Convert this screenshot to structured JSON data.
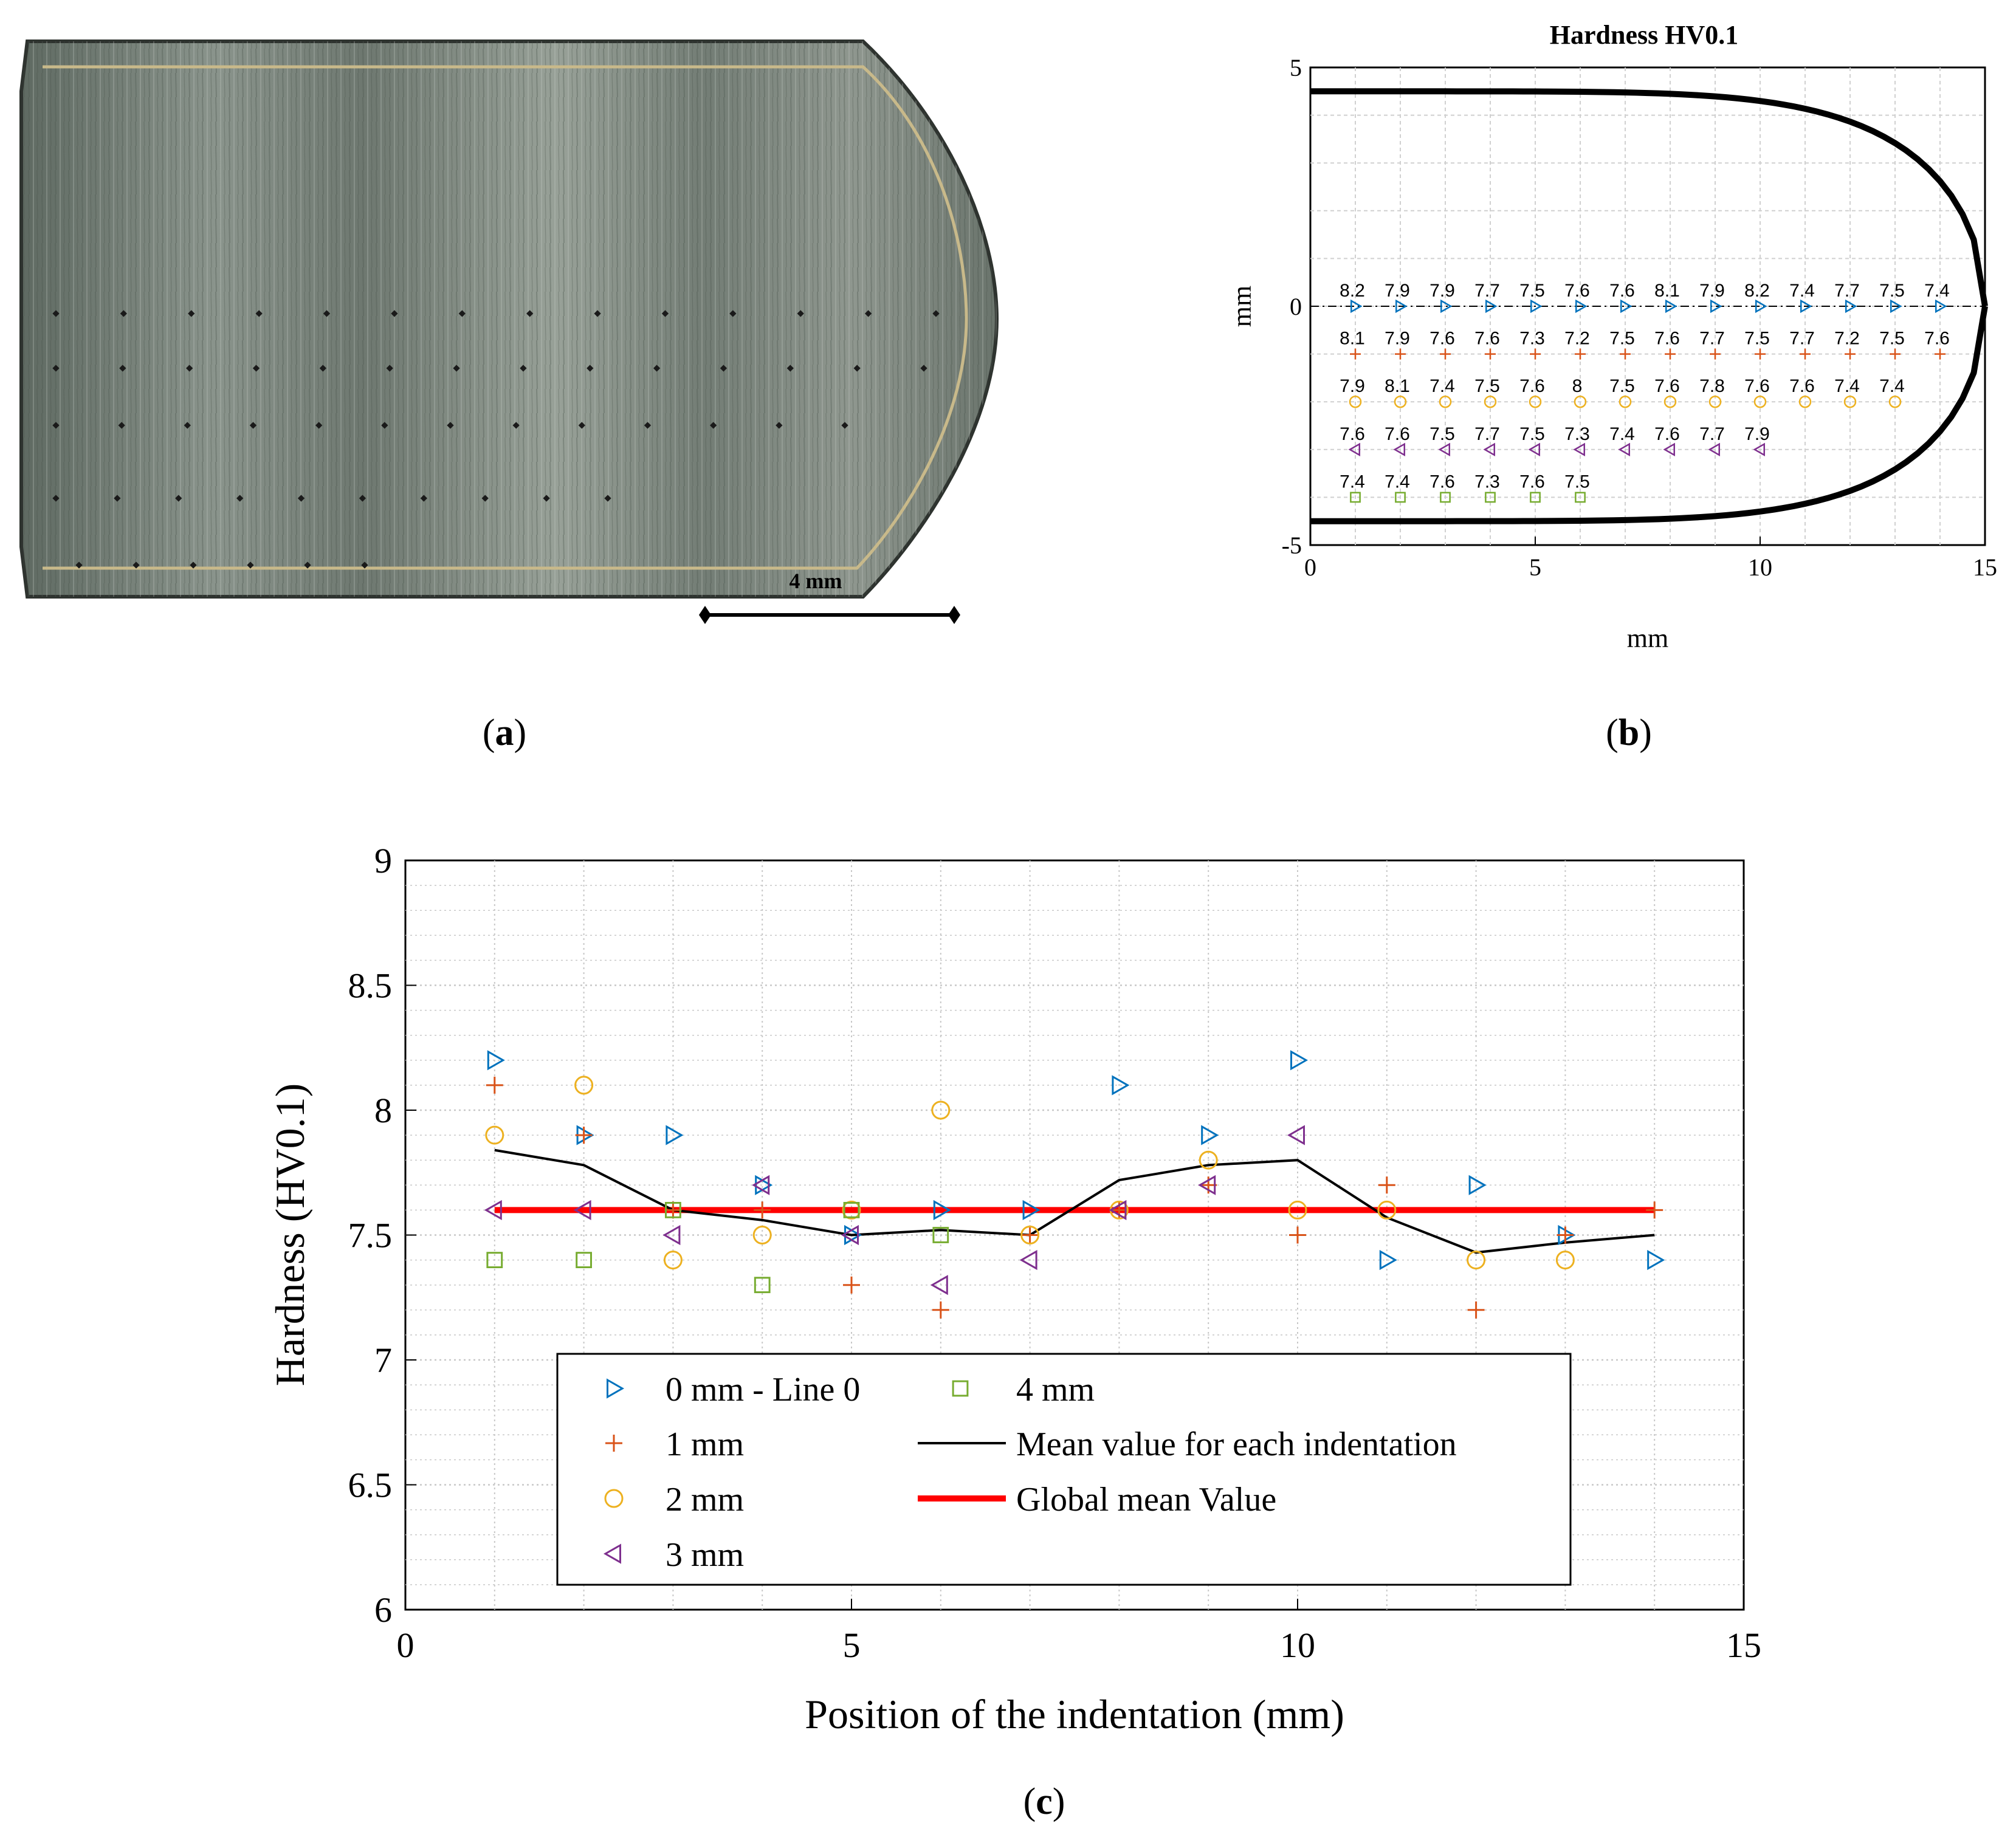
{
  "colors": {
    "line0": "#0072BD",
    "line1": "#D95319",
    "line2": "#EDB120",
    "line3": "#7E2F8E",
    "line4": "#77AC30",
    "mean": "#000000",
    "global_mean": "#FF0000"
  },
  "panel_labels": {
    "a": "a",
    "b": "b",
    "c": "c"
  },
  "panel_a": {
    "scale_bar_label": "4 mm"
  },
  "chart_data": [
    {
      "id": "b",
      "type": "scatter",
      "title": "Hardness HV0.1",
      "xlabel": "mm",
      "ylabel": "mm",
      "xlim": [
        0,
        15
      ],
      "ylim": [
        -5,
        5
      ],
      "xticks": [
        "0",
        "5",
        "10",
        "15"
      ],
      "yticks": [
        "5",
        "0",
        "-5"
      ],
      "grid": true,
      "profile_outline": "specimen tip contour (black, y = ±4.5 with rounded tip at x = 15)",
      "series": [
        {
          "name": "0 mm - Line 0",
          "marker": "triangle-right",
          "y": 0,
          "x": [
            1,
            2,
            3,
            4,
            5,
            6,
            7,
            8,
            9,
            10,
            11,
            12,
            13,
            14
          ],
          "labels": [
            "8.2",
            "7.9",
            "7.9",
            "7.7",
            "7.5",
            "7.6",
            "7.6",
            "8.1",
            "7.9",
            "8.2",
            "7.4",
            "7.7",
            "7.5",
            "7.4"
          ]
        },
        {
          "name": "1 mm",
          "marker": "plus",
          "y": -1,
          "x": [
            1,
            2,
            3,
            4,
            5,
            6,
            7,
            8,
            9,
            10,
            11,
            12,
            13,
            14
          ],
          "labels": [
            "8.1",
            "7.9",
            "7.6",
            "7.6",
            "7.3",
            "7.2",
            "7.5",
            "7.6",
            "7.7",
            "7.5",
            "7.7",
            "7.2",
            "7.5",
            "7.6"
          ]
        },
        {
          "name": "2 mm",
          "marker": "circle",
          "y": -2,
          "x": [
            1,
            2,
            3,
            4,
            5,
            6,
            7,
            8,
            9,
            10,
            11,
            12,
            13
          ],
          "labels": [
            "7.9",
            "8.1",
            "7.4",
            "7.5",
            "7.6",
            "8",
            "7.5",
            "7.6",
            "7.8",
            "7.6",
            "7.6",
            "7.4",
            "7.4"
          ]
        },
        {
          "name": "3 mm",
          "marker": "triangle-left",
          "y": -3,
          "x": [
            1,
            2,
            3,
            4,
            5,
            6,
            7,
            8,
            9,
            10
          ],
          "labels": [
            "7.6",
            "7.6",
            "7.5",
            "7.7",
            "7.5",
            "7.3",
            "7.4",
            "7.6",
            "7.7",
            "7.9"
          ]
        },
        {
          "name": "4 mm",
          "marker": "square",
          "y": -4,
          "x": [
            1,
            2,
            3,
            4,
            5,
            6
          ],
          "labels": [
            "7.4",
            "7.4",
            "7.6",
            "7.3",
            "7.6",
            "7.5"
          ]
        }
      ]
    },
    {
      "id": "c",
      "type": "scatter",
      "title": "",
      "xlabel": "Position of the indentation (mm)",
      "ylabel": "Hardness (HV0.1)",
      "xlim": [
        0,
        15
      ],
      "ylim": [
        6,
        9
      ],
      "xticks": [
        "0",
        "5",
        "10",
        "15"
      ],
      "yticks": [
        "9",
        "8.5",
        "8",
        "7.5",
        "7",
        "6.5",
        "6"
      ],
      "grid": true,
      "legend_location": "bottom-center",
      "series": [
        {
          "name": "0 mm - Line 0",
          "marker": "triangle-right",
          "x": [
            1,
            2,
            3,
            4,
            5,
            6,
            7,
            8,
            9,
            10,
            11,
            12,
            13,
            14
          ],
          "y": [
            8.2,
            7.9,
            7.9,
            7.7,
            7.5,
            7.6,
            7.6,
            8.1,
            7.9,
            8.2,
            7.4,
            7.7,
            7.5,
            7.4
          ]
        },
        {
          "name": "1 mm",
          "marker": "plus",
          "x": [
            1,
            2,
            3,
            4,
            5,
            6,
            7,
            8,
            9,
            10,
            11,
            12,
            13,
            14
          ],
          "y": [
            8.1,
            7.9,
            7.6,
            7.6,
            7.3,
            7.2,
            7.5,
            7.6,
            7.7,
            7.5,
            7.7,
            7.2,
            7.5,
            7.6
          ]
        },
        {
          "name": "2 mm",
          "marker": "circle",
          "x": [
            1,
            2,
            3,
            4,
            5,
            6,
            7,
            8,
            9,
            10,
            11,
            12,
            13
          ],
          "y": [
            7.9,
            8.1,
            7.4,
            7.5,
            7.6,
            8.0,
            7.5,
            7.6,
            7.8,
            7.6,
            7.6,
            7.4,
            7.4
          ]
        },
        {
          "name": "3 mm",
          "marker": "triangle-left",
          "x": [
            1,
            2,
            3,
            4,
            5,
            6,
            7,
            8,
            9,
            10
          ],
          "y": [
            7.6,
            7.6,
            7.5,
            7.7,
            7.5,
            7.3,
            7.4,
            7.6,
            7.7,
            7.9
          ]
        },
        {
          "name": "4 mm",
          "marker": "square",
          "x": [
            1,
            2,
            3,
            4,
            5,
            6
          ],
          "y": [
            7.4,
            7.4,
            7.6,
            7.3,
            7.6,
            7.5
          ]
        },
        {
          "name": "Mean value for each indentation",
          "marker": "line",
          "x": [
            1,
            2,
            3,
            4,
            5,
            6,
            7,
            8,
            9,
            10,
            11,
            12,
            13,
            14
          ],
          "y": [
            7.84,
            7.78,
            7.6,
            7.56,
            7.5,
            7.52,
            7.5,
            7.72,
            7.78,
            7.8,
            7.57,
            7.43,
            7.47,
            7.5
          ]
        },
        {
          "name": "Global mean Value",
          "marker": "thick-line",
          "x": [
            1,
            14
          ],
          "y": [
            7.6,
            7.6
          ]
        }
      ]
    }
  ]
}
